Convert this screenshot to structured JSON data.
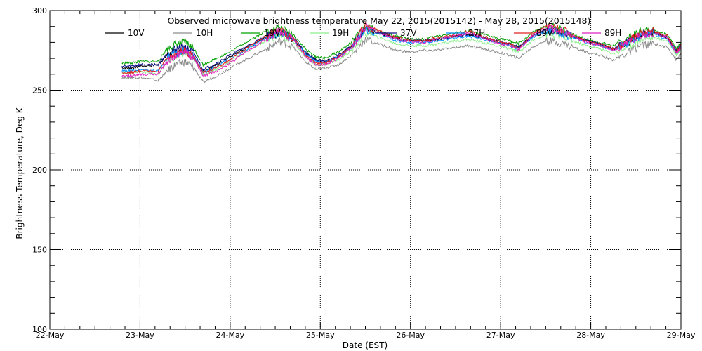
{
  "chart_data": {
    "type": "line",
    "title": "Observed microwave brightness temperature May 22, 2015(2015142) - May 28, 2015(2015148)",
    "xlabel": "Date (EST)",
    "ylabel": "Brightness Temperature, Deg K",
    "x_tick_labels": [
      "22-May",
      "23-May",
      "24-May",
      "25-May",
      "26-May",
      "27-May",
      "28-May",
      "29-May"
    ],
    "y_tick_labels": [
      "100",
      "150",
      "200",
      "250",
      "300"
    ],
    "xlim": [
      22,
      29
    ],
    "ylim": [
      100,
      300
    ],
    "grid": true,
    "legend_position": "top",
    "x": [
      22.8,
      22.9,
      23.0,
      23.2,
      23.3,
      23.4,
      23.5,
      23.6,
      23.7,
      23.85,
      24.0,
      24.2,
      24.4,
      24.55,
      24.7,
      24.85,
      24.95,
      25.05,
      25.2,
      25.35,
      25.5,
      25.7,
      25.85,
      26.0,
      26.15,
      26.3,
      26.5,
      26.65,
      26.8,
      26.95,
      27.1,
      27.2,
      27.35,
      27.5,
      27.65,
      27.8,
      27.95,
      28.1,
      28.25,
      28.4,
      28.55,
      28.7,
      28.85,
      28.95,
      29.0
    ],
    "series": [
      {
        "name": "10V",
        "color": "#000000",
        "values": [
          264,
          264,
          265,
          266,
          272,
          274,
          275,
          270,
          262,
          266,
          271,
          277,
          283,
          286,
          282,
          273,
          269,
          268,
          271,
          278,
          289,
          285,
          283,
          282,
          281,
          282,
          284,
          285,
          283,
          281,
          279,
          277,
          284,
          288,
          287,
          284,
          281,
          279,
          276,
          280,
          285,
          286,
          283,
          274,
          278
        ]
      },
      {
        "name": "10H",
        "color": "#8c8c8c",
        "values": [
          258,
          258,
          258,
          256,
          262,
          266,
          268,
          264,
          255,
          259,
          264,
          270,
          276,
          281,
          277,
          267,
          263,
          264,
          266,
          272,
          282,
          278,
          275,
          274,
          275,
          275,
          277,
          278,
          276,
          274,
          272,
          270,
          277,
          281,
          280,
          277,
          274,
          272,
          269,
          273,
          278,
          279,
          277,
          269,
          273
        ]
      },
      {
        "name": "19V",
        "color": "#00a000",
        "values": [
          267,
          267,
          268,
          268,
          276,
          279,
          280,
          276,
          266,
          270,
          274,
          281,
          287,
          289,
          285,
          275,
          271,
          270,
          274,
          280,
          290,
          286,
          284,
          282,
          282,
          284,
          286,
          287,
          285,
          283,
          281,
          279,
          286,
          290,
          289,
          285,
          282,
          280,
          278,
          282,
          287,
          288,
          285,
          276,
          280
        ]
      },
      {
        "name": "19H",
        "color": "#8cef8c",
        "values": [
          261,
          261,
          262,
          260,
          268,
          271,
          273,
          270,
          260,
          263,
          268,
          275,
          281,
          285,
          280,
          270,
          266,
          266,
          269,
          275,
          286,
          282,
          279,
          278,
          278,
          279,
          281,
          282,
          280,
          278,
          276,
          274,
          281,
          285,
          284,
          281,
          278,
          276,
          273,
          277,
          282,
          283,
          281,
          272,
          276
        ]
      },
      {
        "name": "37V",
        "color": "#10108c",
        "values": [
          265,
          265,
          266,
          266,
          273,
          276,
          277,
          273,
          263,
          267,
          272,
          278,
          284,
          287,
          283,
          273,
          269,
          268,
          272,
          278,
          289,
          285,
          282,
          281,
          281,
          282,
          284,
          285,
          283,
          281,
          279,
          277,
          284,
          288,
          287,
          284,
          281,
          279,
          276,
          280,
          285,
          286,
          283,
          275,
          279
        ]
      },
      {
        "name": "37H",
        "color": "#0090ff",
        "values": [
          262,
          262,
          263,
          262,
          270,
          273,
          275,
          271,
          261,
          265,
          270,
          276,
          283,
          286,
          282,
          272,
          268,
          267,
          271,
          277,
          288,
          284,
          281,
          280,
          280,
          281,
          283,
          284,
          282,
          280,
          278,
          276,
          283,
          287,
          286,
          283,
          280,
          278,
          275,
          279,
          284,
          285,
          282,
          273,
          277
        ]
      },
      {
        "name": "89V",
        "color": "#e02020",
        "values": [
          261,
          261,
          262,
          262,
          270,
          273,
          275,
          271,
          261,
          264,
          269,
          277,
          284,
          288,
          283,
          271,
          267,
          267,
          271,
          278,
          291,
          286,
          283,
          281,
          281,
          283,
          285,
          287,
          284,
          281,
          279,
          276,
          285,
          290,
          289,
          285,
          281,
          279,
          276,
          280,
          286,
          287,
          284,
          274,
          278
        ]
      },
      {
        "name": "89H",
        "color": "#e020c0",
        "values": [
          259,
          259,
          260,
          260,
          268,
          272,
          274,
          270,
          259,
          262,
          267,
          275,
          282,
          287,
          282,
          270,
          266,
          266,
          270,
          277,
          290,
          285,
          282,
          280,
          280,
          282,
          284,
          286,
          283,
          280,
          278,
          275,
          284,
          289,
          288,
          284,
          280,
          278,
          275,
          279,
          285,
          286,
          283,
          273,
          277
        ]
      }
    ]
  }
}
